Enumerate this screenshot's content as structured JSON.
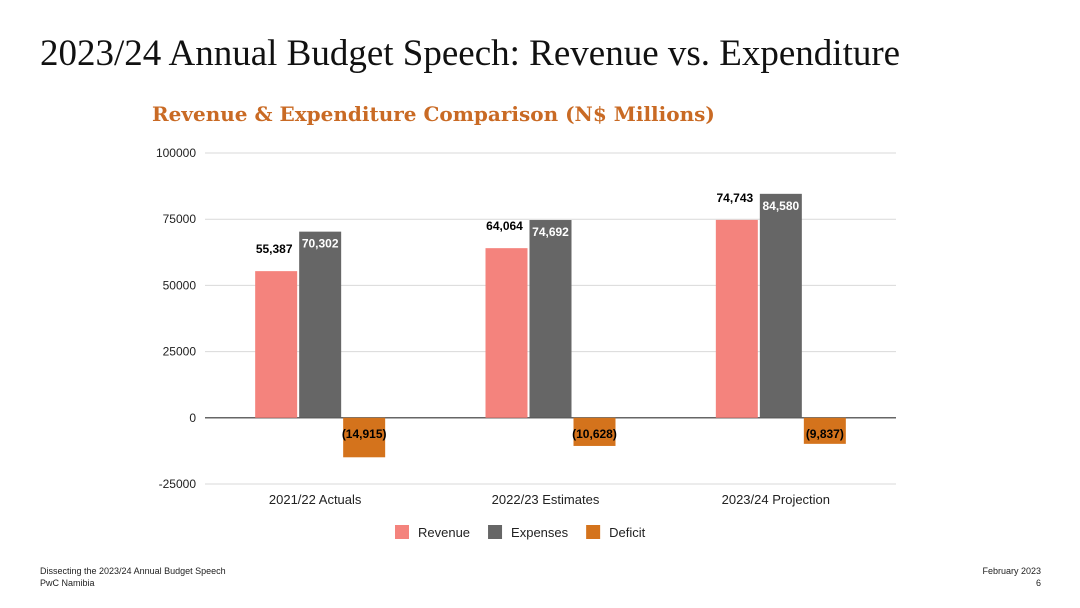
{
  "slide": {
    "title": "2023/24 Annual Budget Speech: Revenue vs. Expenditure",
    "footer_left_line1": "Dissecting the 2023/24 Annual Budget Speech",
    "footer_left_line2": "PwC Namibia",
    "footer_right_line1": "February 2023",
    "page_number": "6"
  },
  "chart_data": {
    "type": "bar",
    "title": "Revenue & Expenditure Comparison (N$ Millions)",
    "xlabel": "",
    "ylabel": "",
    "ylim": [
      -25000,
      100000
    ],
    "yticks": [
      100000,
      75000,
      50000,
      25000,
      0,
      -25000
    ],
    "grid": true,
    "legend_position": "bottom",
    "categories": [
      "2021/22 Actuals",
      "2022/23 Estimates",
      "2023/24 Projection"
    ],
    "series": [
      {
        "name": "Revenue",
        "color": "#f4837d",
        "values": [
          55387,
          64064,
          74743
        ],
        "labels": [
          "55,387",
          "64,064",
          "74,743"
        ]
      },
      {
        "name": "Expenses",
        "color": "#666666",
        "values": [
          70302,
          74692,
          84580
        ],
        "labels": [
          "70,302",
          "74,692",
          "84,580"
        ]
      },
      {
        "name": "Deficit",
        "color": "#d4731c",
        "values": [
          -14915,
          -10628,
          -9837
        ],
        "labels": [
          "(14,915)",
          "(10,628)",
          "(9,837)"
        ]
      }
    ]
  }
}
